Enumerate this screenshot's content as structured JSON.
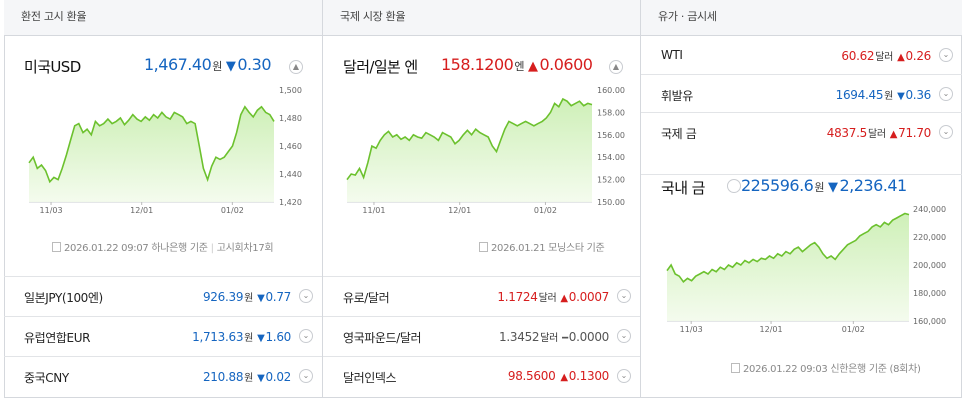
{
  "colors": {
    "blue": "#1565c0",
    "red": "#d61e1e",
    "line": "#6cc12e",
    "area": "#e6f6d8"
  },
  "col1": {
    "header": "환전 고시 환율",
    "main": {
      "name": "미국USD",
      "value": "1,467.40",
      "unit": "원",
      "dir": "down",
      "change": "0.30"
    },
    "chart": {
      "yticks": [
        "1,500",
        "1,480",
        "1,460",
        "1,440",
        "1,420"
      ],
      "xticks": [
        "11/03",
        "12/01",
        "01/02"
      ]
    },
    "source": {
      "date": "2026.01.22 09:07",
      "bank": "하나은행 기준",
      "round": "고시회차17회"
    },
    "list": [
      {
        "name": "일본JPY(100엔)",
        "value": "926.39",
        "unit": "원",
        "dir": "down",
        "change": "0.77"
      },
      {
        "name": "유럽연합EUR",
        "value": "1,713.63",
        "unit": "원",
        "dir": "down",
        "change": "1.60"
      },
      {
        "name": "중국CNY",
        "value": "210.88",
        "unit": "원",
        "dir": "down",
        "change": "0.02"
      }
    ]
  },
  "col2": {
    "header": "국제 시장 환율",
    "main": {
      "name": "달러/일본 엔",
      "value": "158.1200",
      "unit": "엔",
      "dir": "up",
      "change": "0.0600"
    },
    "chart": {
      "yticks": [
        "160.00",
        "158.00",
        "156.00",
        "154.00",
        "152.00",
        "150.00"
      ],
      "xticks": [
        "11/01",
        "12/01",
        "01/02"
      ]
    },
    "source": {
      "date": "2026.01.21",
      "bank": "모닝스타 기준"
    },
    "list": [
      {
        "name": "유로/달러",
        "value": "1.1724",
        "unit": "달러",
        "dir": "up",
        "change": "0.0007"
      },
      {
        "name": "영국파운드/달러",
        "value": "1.3452",
        "unit": "달러",
        "dir": "flat",
        "change": "0.0000"
      },
      {
        "name": "달러인덱스",
        "value": "98.5600",
        "unit": "",
        "dir": "up",
        "change": "0.1300"
      }
    ]
  },
  "col3": {
    "header": "유가 · 금시세",
    "list": [
      {
        "name": "WTI",
        "value": "60.62",
        "unit": "달러",
        "dir": "up",
        "change": "0.26"
      },
      {
        "name": "휘발유",
        "value": "1694.45",
        "unit": "원",
        "dir": "down",
        "change": "0.36"
      },
      {
        "name": "국제 금",
        "value": "4837.5",
        "unit": "달러",
        "dir": "up",
        "change": "71.70"
      }
    ],
    "main": {
      "name": "국내 금",
      "value": "225596.6",
      "unit": "원",
      "dir": "down",
      "change": "2,236.41"
    },
    "chart": {
      "yticks": [
        "240,000",
        "220,000",
        "200,000",
        "180,000",
        "160,000"
      ],
      "xticks": [
        "11/03",
        "12/01",
        "01/02"
      ]
    },
    "source": {
      "date": "2026.01.22 09:03",
      "bank": "신한은행 기준",
      "round": "(8회차)"
    }
  },
  "icons": {
    "up": "▲",
    "down": "▼",
    "flat": "━",
    "toggle": "chevron-down-icon",
    "doc": "document-icon"
  }
}
